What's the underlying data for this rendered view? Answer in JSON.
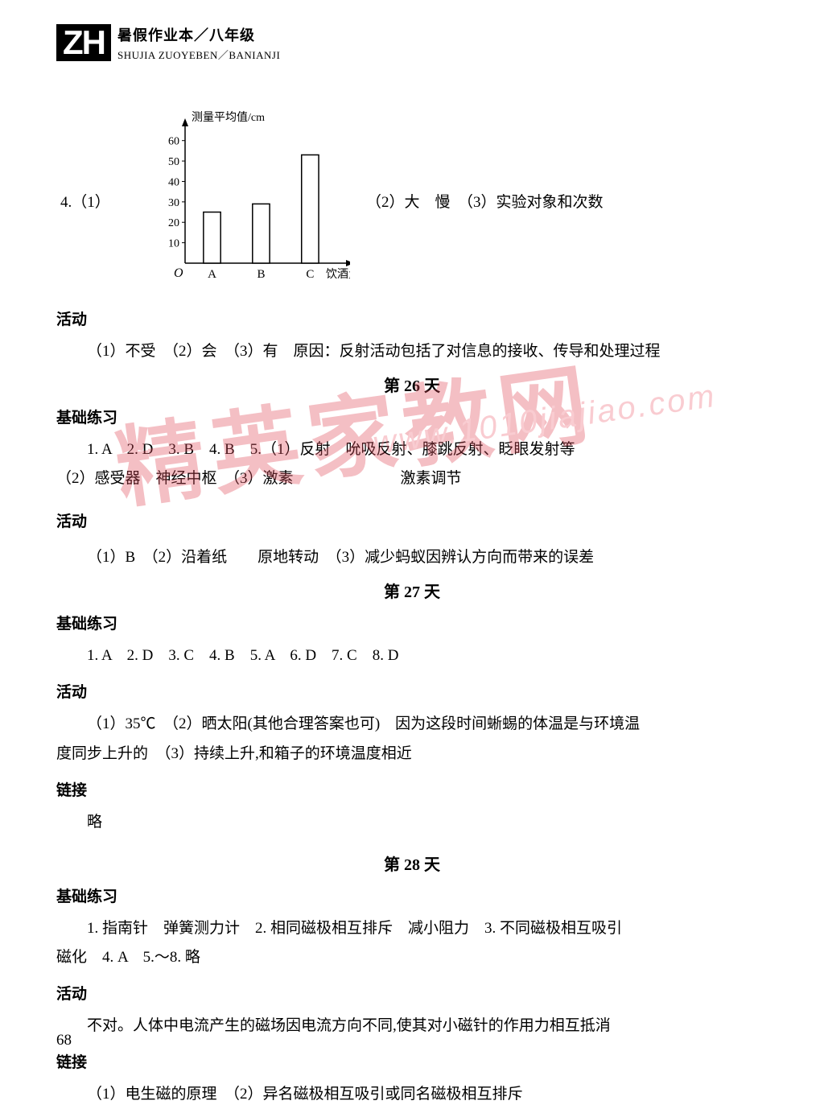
{
  "header": {
    "logo": "ZH",
    "title_cn": "暑假作业本／八年级",
    "title_en": "SHUJIA ZUOYEBEN／BANIANJI"
  },
  "q4": {
    "label": "4.（1）",
    "right_text": "（2）大　慢　（3）实验对象和次数"
  },
  "chart": {
    "type": "bar",
    "y_axis_label": "测量平均值/cm",
    "x_axis_label": "饮酒量",
    "x_categories": [
      "A",
      "B",
      "C"
    ],
    "y_ticks": [
      10,
      20,
      30,
      40,
      50,
      60
    ],
    "y_max": 65,
    "values": [
      25,
      29,
      53
    ],
    "bar_fill": "#ffffff",
    "bar_stroke": "#000000",
    "axis_color": "#000000",
    "font_size_labels": 14
  },
  "section_activity1": "活动",
  "activity1_line": "（1）不受　（2）会　（3）有　原因：反射活动包括了对信息的接收、传导和处理过程",
  "day26": {
    "title": "第 26 天",
    "section_basic": "基础练习",
    "basic_line1": "1. A　2. D　3. B　4. B　5.（1）反射　吮吸反射、膝跳反射、眨眼发射等",
    "basic_line2": "（2）感受器　神经中枢　（3）激素　　　　　　　激素调节",
    "section_activity": "活动",
    "activity_line": "（1）B　（2）沿着纸　　原地转动　（3）减少蚂蚁因辨认方向而带来的误差"
  },
  "day27": {
    "title": "第 27 天",
    "section_basic": "基础练习",
    "basic_line": "1. A　2. D　3. C　4. B　5. A　6. D　7. C　8. D",
    "section_activity": "活动",
    "activity_line1": "（1）35℃　（2）晒太阳(其他合理答案也可)　因为这段时间蜥蜴的体温是与环境温",
    "activity_line2": "度同步上升的　（3）持续上升,和箱子的环境温度相近",
    "section_link": "链接",
    "link_line": "略"
  },
  "day28": {
    "title": "第 28 天",
    "section_basic": "基础练习",
    "basic_line1": "1. 指南针　弹簧测力计　2. 相同磁极相互排斥　减小阻力　3. 不同磁极相互吸引",
    "basic_line2": "磁化　4. A　5.～8. 略",
    "section_activity": "活动",
    "activity_line": "不对。人体中电流产生的磁场因电流方向不同,使其对小磁针的作用力相互抵消",
    "section_link": "链接",
    "link_line": "（1）电生磁的原理　（2）异名磁极相互吸引或同名磁极相互排斥"
  },
  "page_number": "68",
  "watermark": {
    "main": "精英家教网",
    "url": "www.1010jiajiao.com"
  }
}
